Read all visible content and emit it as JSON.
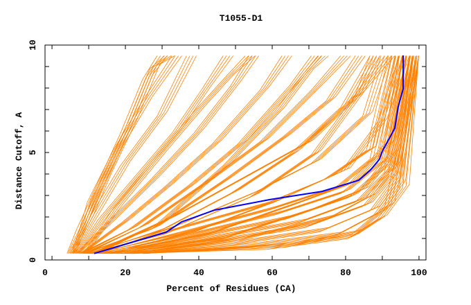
{
  "chart_data": {
    "type": "line",
    "title": "T1055-D1",
    "xlabel": "Percent of Residues (CA)",
    "ylabel": "Distance Cutoff, A",
    "xlim": [
      -1.9,
      101.9
    ],
    "ylim": [
      0,
      10
    ],
    "xticks": [
      0,
      20,
      40,
      60,
      80,
      100
    ],
    "yticks": [
      0,
      5,
      10
    ],
    "grid": false,
    "colors": {
      "models": "#ff8000",
      "highlight": "#0000ff",
      "frame": "#000000"
    },
    "highlight_series": {
      "points": [
        [
          11.5,
          0.3
        ],
        [
          31.1,
          1.29
        ],
        [
          35.3,
          1.77
        ],
        [
          44.3,
          2.32
        ],
        [
          59.4,
          2.81
        ],
        [
          73.6,
          3.19
        ],
        [
          83.6,
          3.71
        ],
        [
          86.8,
          4.19
        ],
        [
          89.2,
          4.68
        ],
        [
          90.0,
          5.06
        ],
        [
          93.4,
          6.13
        ],
        [
          94.3,
          7.1
        ],
        [
          95.7,
          7.97
        ],
        [
          95.7,
          9.52
        ]
      ]
    },
    "model_series": [
      [
        [
          4.5,
          0.3
        ],
        [
          8,
          1.5
        ],
        [
          12,
          3
        ],
        [
          20,
          6
        ],
        [
          26,
          8.5
        ],
        [
          30,
          9.5
        ]
      ],
      [
        [
          5.5,
          0.3
        ],
        [
          10,
          2
        ],
        [
          15,
          4
        ],
        [
          22,
          6.5
        ],
        [
          28,
          9
        ],
        [
          32,
          9.5
        ]
      ],
      [
        [
          6,
          0.3
        ],
        [
          12,
          2.2
        ],
        [
          20,
          4.5
        ],
        [
          30,
          6.8
        ],
        [
          38,
          9.5
        ]
      ],
      [
        [
          7,
          0.3
        ],
        [
          14,
          2
        ],
        [
          24,
          4
        ],
        [
          34,
          6
        ],
        [
          42,
          8
        ],
        [
          48,
          9.5
        ]
      ],
      [
        [
          7,
          0.3
        ],
        [
          16,
          1.8
        ],
        [
          28,
          3.8
        ],
        [
          40,
          6
        ],
        [
          50,
          8.2
        ],
        [
          55,
          9.5
        ]
      ],
      [
        [
          8,
          0.3
        ],
        [
          20,
          1.8
        ],
        [
          32,
          3.5
        ],
        [
          45,
          5.5
        ],
        [
          58,
          8
        ],
        [
          64,
          9.5
        ]
      ],
      [
        [
          8,
          0.3
        ],
        [
          22,
          1.5
        ],
        [
          38,
          3.5
        ],
        [
          52,
          5.5
        ],
        [
          66,
          8.2
        ],
        [
          72,
          9.5
        ]
      ],
      [
        [
          9,
          0.3
        ],
        [
          25,
          1.6
        ],
        [
          42,
          3.6
        ],
        [
          58,
          5.6
        ],
        [
          72,
          8
        ],
        [
          80,
          9.5
        ]
      ],
      [
        [
          9,
          0.3
        ],
        [
          28,
          1.5
        ],
        [
          48,
          3.8
        ],
        [
          64,
          5.8
        ],
        [
          76,
          7.5
        ],
        [
          84,
          9.5
        ]
      ],
      [
        [
          10,
          0.3
        ],
        [
          30,
          1.4
        ],
        [
          50,
          3.2
        ],
        [
          66,
          5
        ],
        [
          80,
          7.2
        ],
        [
          88,
          9.5
        ]
      ],
      [
        [
          10,
          0.3
        ],
        [
          32,
          1.3
        ],
        [
          55,
          3
        ],
        [
          72,
          5
        ],
        [
          84,
          7.8
        ],
        [
          92,
          9.5
        ]
      ],
      [
        [
          11,
          0.3
        ],
        [
          35,
          1.5
        ],
        [
          58,
          2.6
        ],
        [
          75,
          3.8
        ],
        [
          87,
          5.2
        ],
        [
          93,
          9.5
        ]
      ],
      [
        [
          12,
          0.3
        ],
        [
          36,
          1.3
        ],
        [
          60,
          2.4
        ],
        [
          78,
          3.4
        ],
        [
          88,
          4.8
        ],
        [
          94,
          9.5
        ]
      ],
      [
        [
          13,
          0.3
        ],
        [
          38,
          1.2
        ],
        [
          62,
          2.2
        ],
        [
          80,
          3.2
        ],
        [
          90,
          4.6
        ],
        [
          95,
          9.5
        ]
      ],
      [
        [
          14,
          0.3
        ],
        [
          40,
          1.1
        ],
        [
          65,
          2
        ],
        [
          82,
          3
        ],
        [
          91,
          4.4
        ],
        [
          96,
          9.5
        ]
      ],
      [
        [
          15,
          0.3
        ],
        [
          42,
          1.0
        ],
        [
          68,
          1.8
        ],
        [
          84,
          2.8
        ],
        [
          92,
          4.2
        ],
        [
          97,
          9.5
        ]
      ],
      [
        [
          16,
          0.3
        ],
        [
          45,
          0.9
        ],
        [
          70,
          1.6
        ],
        [
          86,
          2.6
        ],
        [
          93,
          4
        ],
        [
          98,
          9.5
        ]
      ],
      [
        [
          18,
          0.3
        ],
        [
          50,
          0.8
        ],
        [
          74,
          1.4
        ],
        [
          88,
          2.4
        ],
        [
          94,
          3.8
        ],
        [
          99,
          9.5
        ]
      ],
      [
        [
          20,
          0.3
        ],
        [
          55,
          0.7
        ],
        [
          78,
          1.2
        ],
        [
          89,
          2.2
        ],
        [
          95,
          3.6
        ],
        [
          99.5,
          9.5
        ]
      ],
      [
        [
          22,
          0.3
        ],
        [
          60,
          0.6
        ],
        [
          82,
          1.1
        ],
        [
          90,
          2
        ],
        [
          96,
          3.4
        ],
        [
          99.8,
          9.5
        ]
      ],
      [
        [
          25,
          0.3
        ],
        [
          65,
          0.7
        ],
        [
          83,
          1.3
        ],
        [
          92,
          2.6
        ],
        [
          95,
          5
        ],
        [
          99.5,
          9.5
        ]
      ],
      [
        [
          12,
          0.3
        ],
        [
          33,
          2.0
        ],
        [
          52,
          3.8
        ],
        [
          70,
          5.5
        ],
        [
          84,
          7.8
        ],
        [
          88,
          9.5
        ]
      ],
      [
        [
          9,
          0.3
        ],
        [
          18,
          2.5
        ],
        [
          30,
          5
        ],
        [
          40,
          7
        ],
        [
          48,
          8.5
        ],
        [
          54,
          9.5
        ]
      ],
      [
        [
          6,
          0.3
        ],
        [
          11,
          2.8
        ],
        [
          18,
          5.2
        ],
        [
          26,
          7.5
        ],
        [
          34,
          9.5
        ]
      ],
      [
        [
          11,
          0.3
        ],
        [
          30,
          1.8
        ],
        [
          48,
          4.5
        ],
        [
          62,
          7
        ],
        [
          70,
          8.8
        ],
        [
          74,
          9.5
        ]
      ],
      [
        [
          13,
          0.3
        ],
        [
          34,
          1.6
        ],
        [
          56,
          3.2
        ],
        [
          72,
          4.6
        ],
        [
          86,
          6.8
        ],
        [
          91,
          9.5
        ]
      ],
      [
        [
          16,
          0.3
        ],
        [
          40,
          1.4
        ],
        [
          62,
          2.8
        ],
        [
          80,
          4.2
        ],
        [
          90,
          6.5
        ],
        [
          96,
          9.5
        ]
      ],
      [
        [
          17,
          0.3
        ],
        [
          44,
          1.3
        ],
        [
          66,
          2.6
        ],
        [
          82,
          3.6
        ],
        [
          92,
          5.5
        ],
        [
          97,
          9.5
        ]
      ],
      [
        [
          19,
          0.3
        ],
        [
          48,
          1.1
        ],
        [
          70,
          2.3
        ],
        [
          85,
          3.3
        ],
        [
          93,
          5
        ],
        [
          98,
          9.5
        ]
      ],
      [
        [
          21,
          0.3
        ],
        [
          52,
          1.0
        ],
        [
          76,
          2.0
        ],
        [
          87,
          3.0
        ],
        [
          94,
          4.6
        ],
        [
          99,
          9.5
        ]
      ]
    ]
  }
}
